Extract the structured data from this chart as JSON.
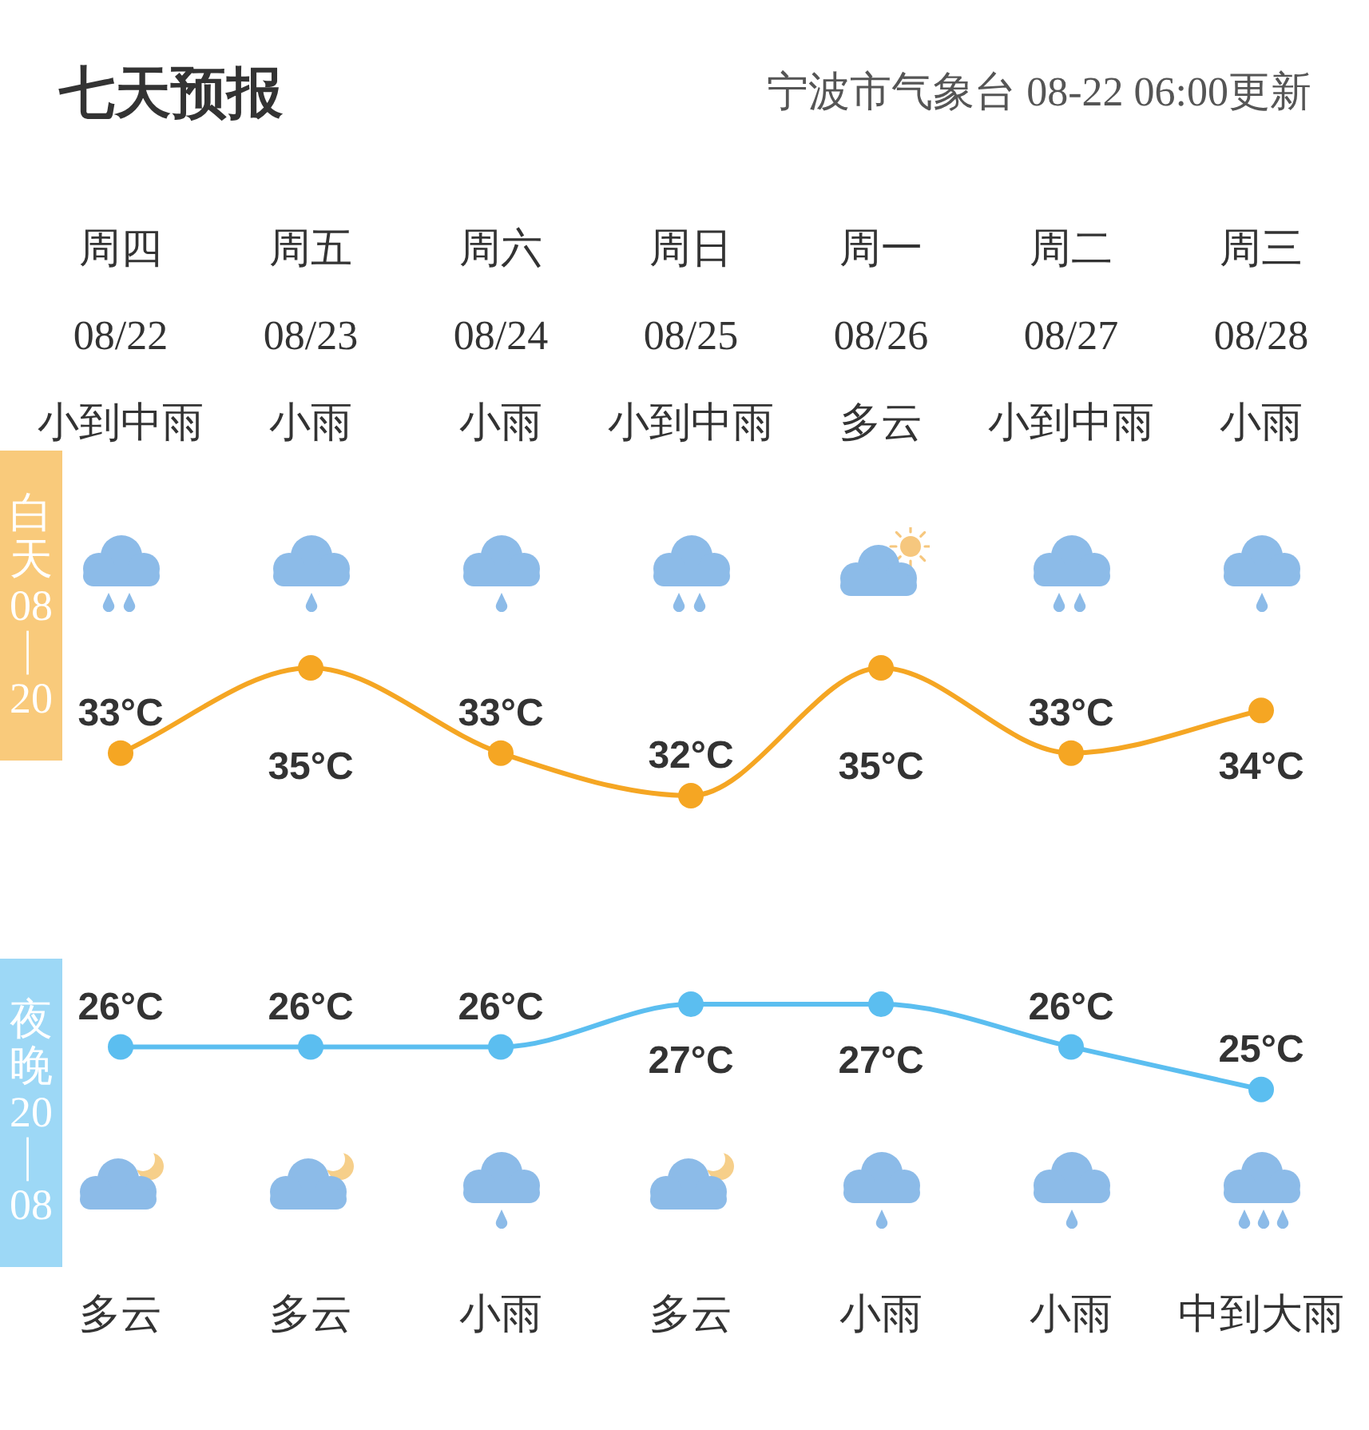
{
  "chart_data": [
    {
      "type": "line",
      "title": "七天预报",
      "subtitle": "宁波市气象台 08-22 06:00更新",
      "categories": [
        "周四\n08/22\n小到中雨",
        "周五\n08/23\n小雨",
        "周六\n08/24\n小雨",
        "周日\n08/25\n小到中雨",
        "周一\n08/26\n多云",
        "周二\n08/27\n小到中雨",
        "周三\n08/28\n小雨"
      ],
      "series": [
        {
          "name": "白天08—20",
          "color": "#f5a623",
          "values": [
            33,
            35,
            33,
            32,
            35,
            33,
            34
          ],
          "value_labels": [
            "33°C",
            "35°C",
            "33°C",
            "32°C",
            "35°C",
            "33°C",
            "34°C"
          ]
        }
      ],
      "tick_labels": "x",
      "marker": "circle",
      "line_style": "solid"
    },
    {
      "type": "line",
      "categories": [
        "多云",
        "多云",
        "小雨",
        "多云",
        "小雨",
        "小雨",
        "中到大雨"
      ],
      "series": [
        {
          "name": "夜晚20—08",
          "color": "#5bbef0",
          "values": [
            26,
            26,
            26,
            27,
            27,
            26,
            25
          ],
          "value_labels": [
            "26°C",
            "26°C",
            "26°C",
            "27°C",
            "27°C",
            "26°C",
            "25°C"
          ]
        }
      ],
      "tick_labels": "x",
      "marker": "circle",
      "line_style": "solid"
    }
  ]
}
